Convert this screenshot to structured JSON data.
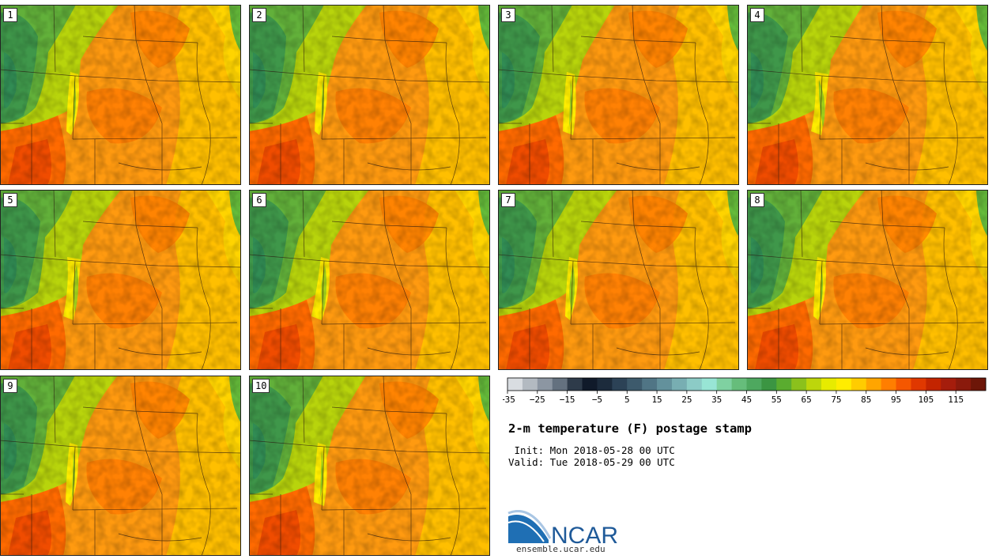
{
  "members": [
    {
      "label": "1"
    },
    {
      "label": "2"
    },
    {
      "label": "3"
    },
    {
      "label": "4"
    },
    {
      "label": "5"
    },
    {
      "label": "6"
    },
    {
      "label": "7"
    },
    {
      "label": "8"
    },
    {
      "label": "9"
    },
    {
      "label": "10"
    }
  ],
  "colorbar": {
    "tick_labels": [
      "−35",
      "−25",
      "−15",
      "−5",
      "5",
      "15",
      "25",
      "35",
      "45",
      "55",
      "65",
      "75",
      "85",
      "95",
      "105",
      "115"
    ],
    "colors": [
      "#d9dde1",
      "#b3bac1",
      "#8c96a2",
      "#64717f",
      "#2e3b4a",
      "#101a2a",
      "#1c2b3c",
      "#2c4256",
      "#3d5a6c",
      "#507585",
      "#63919c",
      "#78aeb2",
      "#8ccbc6",
      "#98e5d5",
      "#7fd1a1",
      "#66bd7b",
      "#4ea85f",
      "#3b9542",
      "#5aac2f",
      "#8bc11c",
      "#bdd60b",
      "#e7eb00",
      "#ffed00",
      "#ffcc00",
      "#ffa500",
      "#ff7e00",
      "#f55700",
      "#e03800",
      "#c32400",
      "#a51d0c",
      "#8a1a0c",
      "#6d1608"
    ]
  },
  "title": "2-m temperature (F) postage stamp",
  "init_line": " Init: Mon 2018-05-28 00 UTC",
  "valid_line": "Valid: Tue 2018-05-29 00 UTC",
  "logo": {
    "text": "NCAR",
    "url": "ensemble.ucar.edu"
  }
}
